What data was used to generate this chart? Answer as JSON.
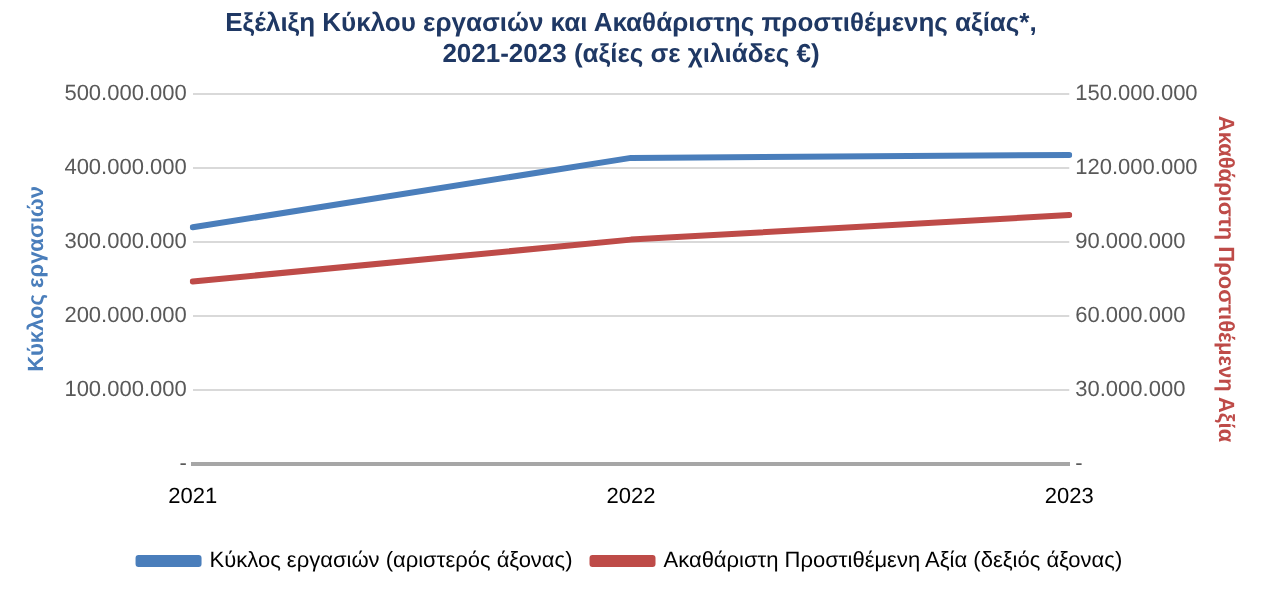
{
  "chart_data": {
    "type": "line",
    "title": "Εξέλιξη Κύκλου εργασιών και Ακαθάριστης προστιθέμενης αξίας*,\n2021-2023 (αξίες σε χιλιάδες €)",
    "categories": [
      "2021",
      "2022",
      "2023"
    ],
    "series": [
      {
        "name": "Κύκλος εργασιών (αριστερός άξονας)",
        "color": "#4a7ebb",
        "values": [
          320000000,
          414000000,
          418000000
        ]
      },
      {
        "name": "Ακαθάριστη Προστιθέμενη Αξία (δεξιός άξονας)",
        "color": "#be4b48",
        "values": [
          74000000,
          91000000,
          101000000
        ],
        "axis": "y2"
      }
    ],
    "ylabel": "Κύκλος εργασιών",
    "y2label": "Ακαθάριστη Προστιθέμενη Αξία",
    "ylim": [
      0,
      500000000
    ],
    "yticks": [
      {
        "value": 0,
        "label": "-"
      },
      {
        "value": 100000000,
        "label": "100.000.000"
      },
      {
        "value": 200000000,
        "label": "200.000.000"
      },
      {
        "value": 300000000,
        "label": "300.000.000"
      },
      {
        "value": 400000000,
        "label": "400.000.000"
      },
      {
        "value": 500000000,
        "label": "500.000.000"
      }
    ],
    "y2lim": [
      0,
      150000000
    ],
    "y2ticks": [
      {
        "value": 0,
        "label": "-"
      },
      {
        "value": 30000000,
        "label": "30.000.000"
      },
      {
        "value": 60000000,
        "label": "60.000.000"
      },
      {
        "value": 90000000,
        "label": "90.000.000"
      },
      {
        "value": 120000000,
        "label": "120.000.000"
      },
      {
        "value": 150000000,
        "label": "150.000.000"
      }
    ],
    "grid": "y",
    "legend": "bottom",
    "marker": "none",
    "line_style": "solid"
  }
}
